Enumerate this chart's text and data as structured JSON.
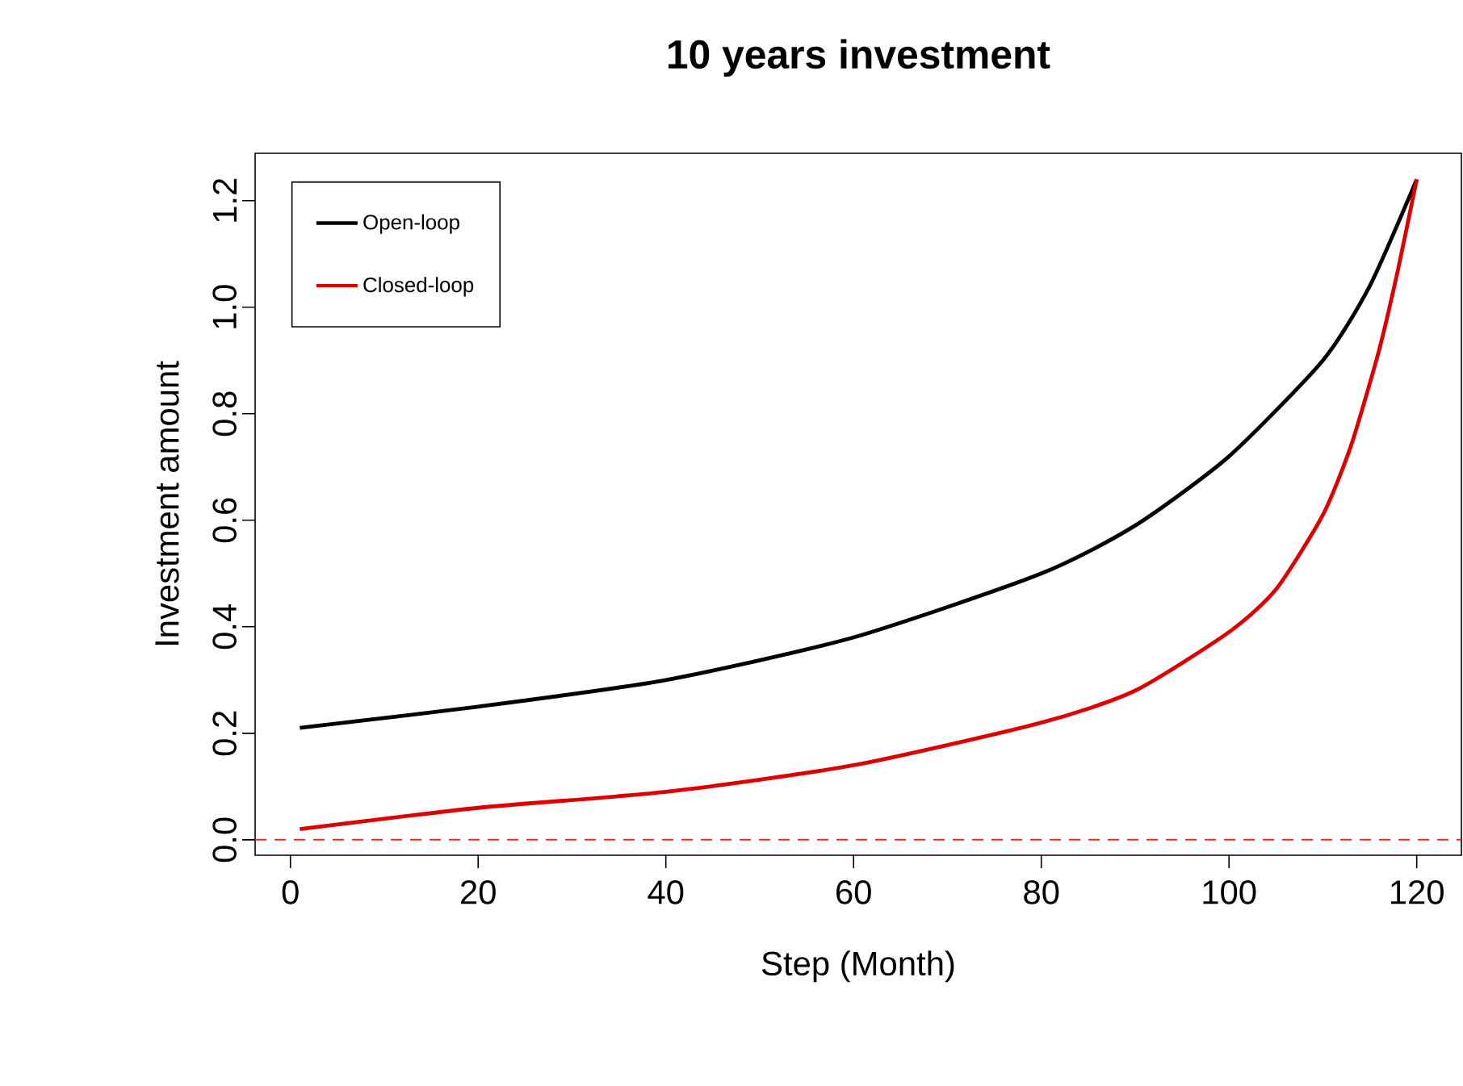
{
  "chart_data": {
    "type": "line",
    "title": "10 years investment",
    "xlabel": "Step (Month)",
    "ylabel": "Investment amount",
    "xlim": [
      -3.76,
      124.76
    ],
    "ylim": [
      -0.029,
      1.289
    ],
    "xticks": [
      0,
      20,
      40,
      60,
      80,
      100,
      120
    ],
    "yticks": [
      {
        "value": 0,
        "label": "0.0"
      },
      {
        "value": 0.2,
        "label": "0.2"
      },
      {
        "value": 0.4,
        "label": "0.4"
      },
      {
        "value": 0.6,
        "label": "0.6"
      },
      {
        "value": 0.8,
        "label": "0.8"
      },
      {
        "value": 1.0,
        "label": "1.0"
      },
      {
        "value": 1.2,
        "label": "1.2"
      }
    ],
    "grid": false,
    "legend": "top left",
    "marker": "none",
    "line_style": "solid",
    "series": [
      {
        "name": "Open-loop",
        "color": "#000000",
        "x": [
          1,
          20,
          40,
          60,
          80,
          90,
          100,
          110,
          115,
          120
        ],
        "values": [
          0.21,
          0.25,
          0.3,
          0.38,
          0.5,
          0.59,
          0.72,
          0.9,
          1.04,
          1.24
        ]
      },
      {
        "name": "Closed-loop",
        "color": "#dd0000",
        "x": [
          1,
          20,
          40,
          60,
          80,
          90,
          100,
          105,
          110,
          113,
          116,
          118,
          120
        ],
        "values": [
          0.02,
          0.06,
          0.09,
          0.14,
          0.22,
          0.28,
          0.39,
          0.47,
          0.61,
          0.74,
          0.92,
          1.07,
          1.24
        ]
      }
    ],
    "ref_lines": [
      {
        "axis": "y",
        "value": 0,
        "color": "#e03030",
        "line_style": "dashed"
      }
    ]
  }
}
